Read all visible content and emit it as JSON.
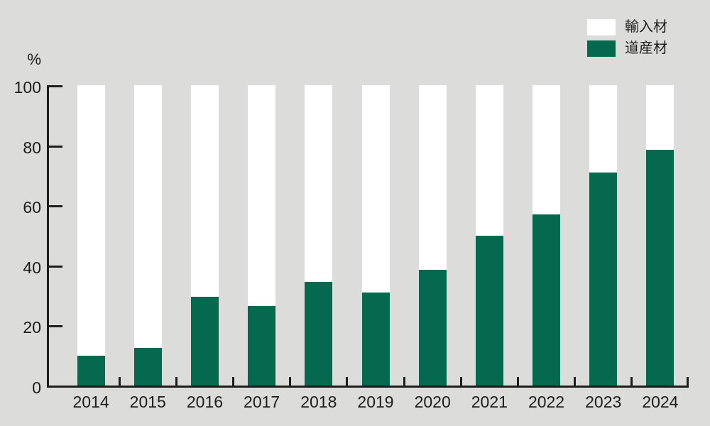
{
  "chart_data": {
    "type": "bar",
    "stacked": true,
    "title": "",
    "unit": "%",
    "categories": [
      "2014",
      "2015",
      "2016",
      "2017",
      "2018",
      "2019",
      "2020",
      "2021",
      "2022",
      "2023",
      "2024"
    ],
    "series": [
      {
        "name": "輸入材",
        "color": "#ffffff",
        "values": [
          90,
          87.5,
          70.5,
          73.5,
          65.5,
          69,
          61.5,
          50,
          43,
          29,
          21.5
        ]
      },
      {
        "name": "道産材",
        "color": "#056950",
        "values": [
          10,
          12.5,
          29.5,
          26.5,
          34.5,
          31,
          38.5,
          50,
          57,
          71,
          78.5
        ]
      }
    ],
    "y_ticks": [
      0,
      20,
      40,
      60,
      80,
      100
    ],
    "ylim": [
      0,
      100
    ],
    "grid": false,
    "legend_position": "top-right",
    "background_color": "#dcdcda",
    "axis_color": "#1d1d1b"
  },
  "legend": {
    "items": [
      {
        "label": "輸入材",
        "color": "#ffffff"
      },
      {
        "label": "道産材",
        "color": "#056950"
      }
    ]
  }
}
